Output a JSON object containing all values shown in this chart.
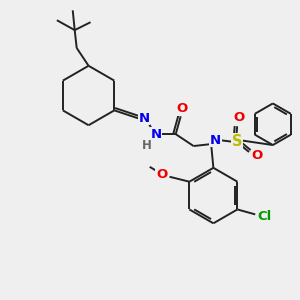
{
  "bg_color": "#efefef",
  "bond_color": "#222222",
  "bond_width": 1.4,
  "atom_colors": {
    "N": "#0000ee",
    "O": "#ee0000",
    "S": "#bbbb00",
    "Cl": "#009900",
    "H": "#666666",
    "C": "#222222"
  },
  "font_size": 8.5,
  "fig_size": [
    3.0,
    3.0
  ],
  "dpi": 100
}
